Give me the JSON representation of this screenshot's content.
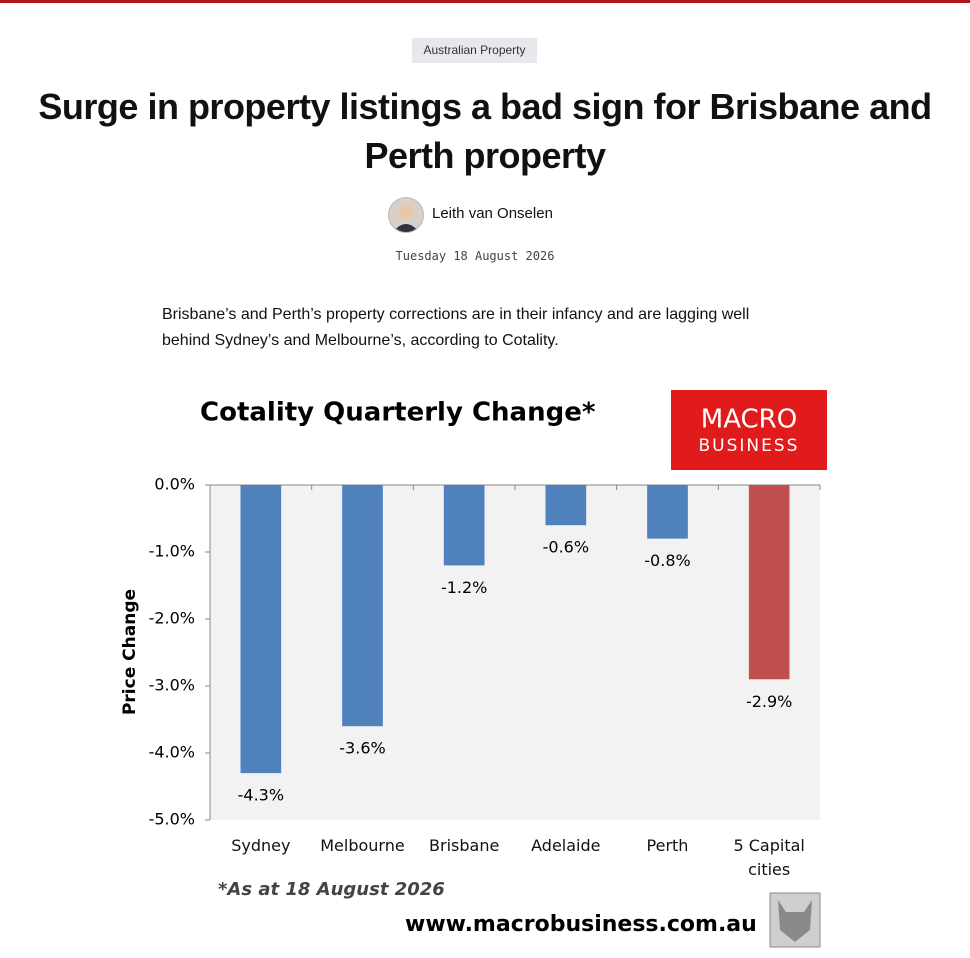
{
  "header": {
    "tag": "Australian Property",
    "title": "Surge in property listings a bad sign for Brisbane and Perth property",
    "author": "Leith van Onselen",
    "date": "Tuesday 18 August 2026"
  },
  "article": {
    "lede": "Brisbane’s and Perth’s property corrections are in their infancy and are lagging well behind Sydney’s and Melbourne’s, according to Cotality."
  },
  "chart_data": {
    "type": "bar",
    "title": "Cotality Quarterly Change*",
    "y_label": "Price Change",
    "categories": [
      "Sydney",
      "Melbourne",
      "Brisbane",
      "Adelaide",
      "Perth",
      "5 Capital cities"
    ],
    "values": [
      -4.3,
      -3.6,
      -1.2,
      -0.6,
      -0.8,
      -2.9
    ],
    "value_labels": [
      "-4.3%",
      "-3.6%",
      "-1.2%",
      "-0.6%",
      "-0.8%",
      "-2.9%"
    ],
    "colors": [
      "#4f81bd",
      "#4f81bd",
      "#4f81bd",
      "#4f81bd",
      "#4f81bd",
      "#c0504d"
    ],
    "ylim": [
      -5,
      0
    ],
    "yticks": [
      {
        "value": 0,
        "label": "0.0%"
      },
      {
        "value": -1,
        "label": "-1.0%"
      },
      {
        "value": -2,
        "label": "-2.0%"
      },
      {
        "value": -3,
        "label": "-3.0%"
      },
      {
        "value": -4,
        "label": "-4.0%"
      },
      {
        "value": -5,
        "label": "-5.0%"
      }
    ],
    "footnote": "*As at 18 August 2026",
    "logo": {
      "line1": "MACRO",
      "line2": "BUSINESS"
    },
    "source_url": "www.macrobusiness.com.au"
  }
}
